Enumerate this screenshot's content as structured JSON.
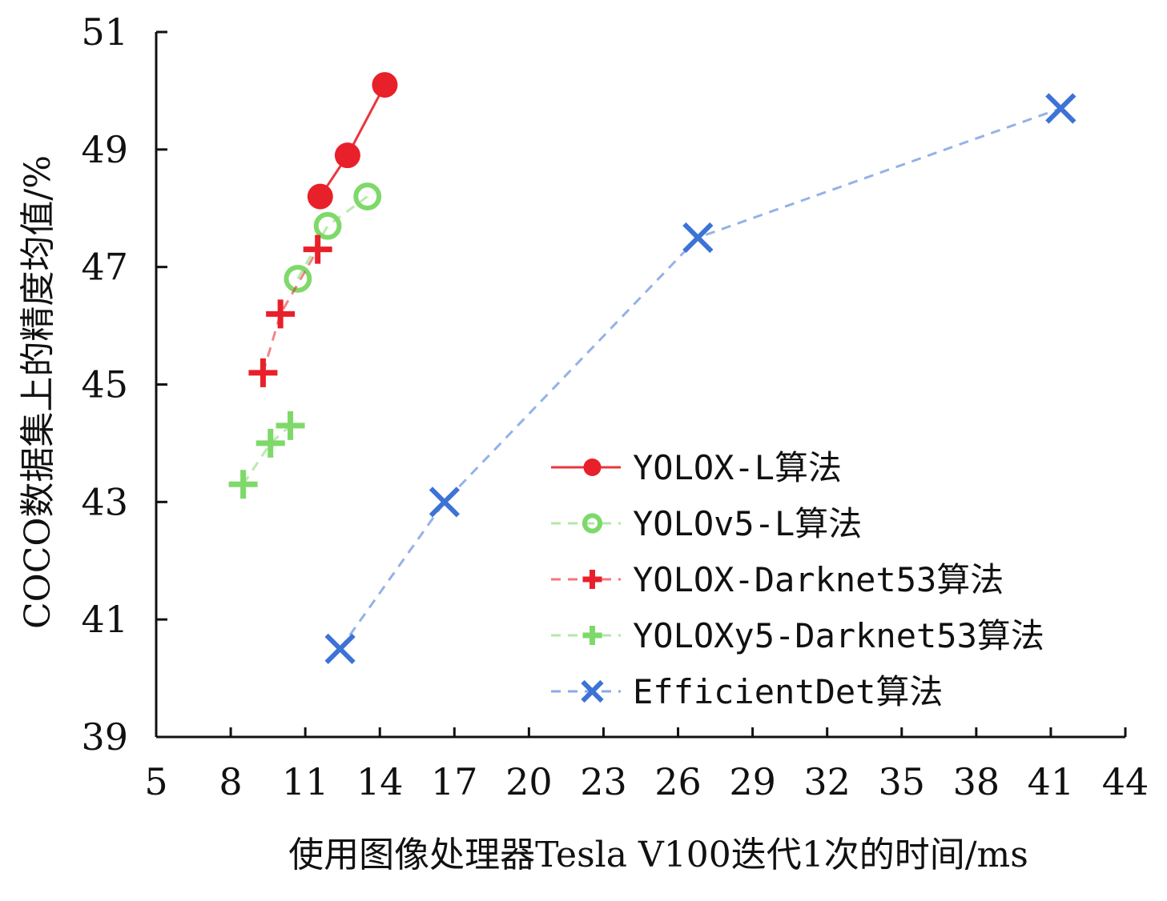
{
  "chart_data": {
    "type": "line",
    "xlabel": "使用图像处理器Tesla V100迭代1次的时间/ms",
    "ylabel": "COCO数据集上的精度均值/%",
    "xlim": [
      5,
      44
    ],
    "ylim": [
      39,
      51
    ],
    "x_ticks": [
      5,
      8,
      11,
      14,
      17,
      20,
      23,
      26,
      29,
      32,
      35,
      38,
      41,
      44
    ],
    "y_ticks": [
      39,
      41,
      43,
      45,
      47,
      49,
      51
    ],
    "grid": false,
    "legend_position": "bottom-right",
    "series": [
      {
        "name": "YOLOX-L算法",
        "color": "#e8202a",
        "marker": "filled-circle",
        "line": "solid",
        "points": [
          [
            11.6,
            48.2
          ],
          [
            12.7,
            48.9
          ],
          [
            14.2,
            50.1
          ]
        ]
      },
      {
        "name": "YOLOv5-L算法",
        "color": "#7ed96a",
        "marker": "open-circle",
        "line": "dashed",
        "points": [
          [
            10.7,
            46.8
          ],
          [
            11.9,
            47.7
          ],
          [
            13.5,
            48.2
          ]
        ]
      },
      {
        "name": "YOLOX-Darknet53算法",
        "color": "#e8202a",
        "marker": "plus",
        "line": "dashed",
        "points": [
          [
            9.3,
            45.2
          ],
          [
            10.0,
            46.2
          ],
          [
            11.5,
            47.3
          ]
        ]
      },
      {
        "name": "YOLOXy5-Darknet53算法",
        "color": "#7ed96a",
        "marker": "plus",
        "line": "dashed",
        "points": [
          [
            8.5,
            43.3
          ],
          [
            9.6,
            44.0
          ],
          [
            10.4,
            44.3
          ]
        ]
      },
      {
        "name": "EfficientDet算法",
        "color": "#3d73d6",
        "marker": "x",
        "line": "dashed",
        "points": [
          [
            12.4,
            40.5
          ],
          [
            16.6,
            43.0
          ],
          [
            26.8,
            47.5
          ],
          [
            41.4,
            49.7
          ]
        ]
      }
    ]
  }
}
